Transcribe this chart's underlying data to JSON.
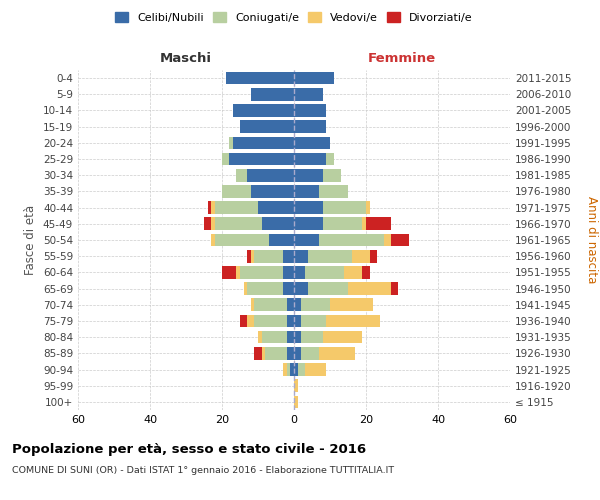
{
  "age_groups": [
    "100+",
    "95-99",
    "90-94",
    "85-89",
    "80-84",
    "75-79",
    "70-74",
    "65-69",
    "60-64",
    "55-59",
    "50-54",
    "45-49",
    "40-44",
    "35-39",
    "30-34",
    "25-29",
    "20-24",
    "15-19",
    "10-14",
    "5-9",
    "0-4"
  ],
  "birth_years": [
    "≤ 1915",
    "1916-1920",
    "1921-1925",
    "1926-1930",
    "1931-1935",
    "1936-1940",
    "1941-1945",
    "1946-1950",
    "1951-1955",
    "1956-1960",
    "1961-1965",
    "1966-1970",
    "1971-1975",
    "1976-1980",
    "1981-1985",
    "1986-1990",
    "1991-1995",
    "1996-2000",
    "2001-2005",
    "2006-2010",
    "2011-2015"
  ],
  "male": {
    "celibi": [
      0,
      0,
      1,
      2,
      2,
      2,
      2,
      3,
      3,
      3,
      7,
      9,
      10,
      12,
      13,
      18,
      17,
      15,
      17,
      12,
      19
    ],
    "coniugati": [
      0,
      0,
      1,
      6,
      7,
      9,
      9,
      10,
      12,
      8,
      15,
      13,
      12,
      8,
      3,
      2,
      1,
      0,
      0,
      0,
      0
    ],
    "vedovi": [
      0,
      0,
      1,
      1,
      1,
      2,
      1,
      1,
      1,
      1,
      1,
      1,
      1,
      0,
      0,
      0,
      0,
      0,
      0,
      0,
      0
    ],
    "divorziati": [
      0,
      0,
      0,
      2,
      0,
      2,
      0,
      0,
      4,
      1,
      0,
      2,
      1,
      0,
      0,
      0,
      0,
      0,
      0,
      0,
      0
    ]
  },
  "female": {
    "nubili": [
      0,
      0,
      1,
      2,
      2,
      2,
      2,
      4,
      3,
      4,
      7,
      8,
      8,
      7,
      8,
      9,
      10,
      9,
      9,
      8,
      11
    ],
    "coniugate": [
      0,
      0,
      2,
      5,
      6,
      7,
      8,
      11,
      11,
      12,
      18,
      11,
      12,
      8,
      5,
      2,
      0,
      0,
      0,
      0,
      0
    ],
    "vedove": [
      1,
      1,
      6,
      10,
      11,
      15,
      12,
      12,
      5,
      5,
      2,
      1,
      1,
      0,
      0,
      0,
      0,
      0,
      0,
      0,
      0
    ],
    "divorziate": [
      0,
      0,
      0,
      0,
      0,
      0,
      0,
      2,
      2,
      2,
      5,
      7,
      0,
      0,
      0,
      0,
      0,
      0,
      0,
      0,
      0
    ]
  },
  "colors": {
    "celibi": "#3a6ca8",
    "coniugati": "#b8cfa0",
    "vedovi": "#f5c96a",
    "divorziati": "#cc2222"
  },
  "xlim": 60,
  "title": "Popolazione per età, sesso e stato civile - 2016",
  "subtitle": "COMUNE DI SUNI (OR) - Dati ISTAT 1° gennaio 2016 - Elaborazione TUTTITALIA.IT",
  "ylabel_left": "Fasce di età",
  "ylabel_right": "Anni di nascita",
  "legend_labels": [
    "Celibi/Nubili",
    "Coniugati/e",
    "Vedovi/e",
    "Divorziati/e"
  ],
  "maschi_label": "Maschi",
  "femmine_label": "Femmine"
}
